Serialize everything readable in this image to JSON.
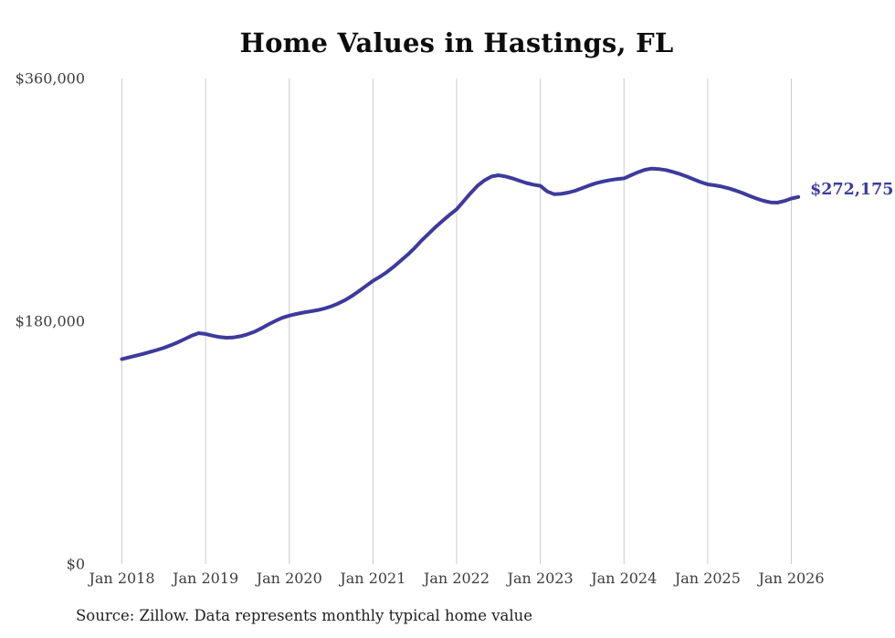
{
  "chart_data": {
    "type": "line",
    "title": "Home Values in Hastings, FL",
    "source_note": "Source: Zillow. Data represents monthly typical home value",
    "end_label": "$272,175",
    "end_value": 272175,
    "x_start_month": "2018-01",
    "x_end_month": "2026-02",
    "x_ticks": [
      "Jan 2018",
      "Jan 2019",
      "Jan 2020",
      "Jan 2021",
      "Jan 2022",
      "Jan 2023",
      "Jan 2024",
      "Jan 2025",
      "Jan 2026"
    ],
    "y_ticks": [
      {
        "label": "$360,000",
        "value": 360000
      },
      {
        "label": "$180,000",
        "value": 180000
      },
      {
        "label": "$0",
        "value": 0
      }
    ],
    "ylim": [
      0,
      360000
    ],
    "grid": "vertical-only",
    "legend": "none",
    "series": [
      {
        "name": "Monthly typical home value",
        "color": "#3e3a9c",
        "values": [
          152000,
          153200,
          154500,
          155800,
          157200,
          158700,
          160300,
          162200,
          164400,
          166800,
          169300,
          171200,
          170600,
          169300,
          168300,
          167800,
          168000,
          168900,
          170300,
          172200,
          174800,
          177600,
          180300,
          182600,
          184200,
          185400,
          186400,
          187300,
          188200,
          189400,
          191000,
          193100,
          195700,
          198800,
          202400,
          206200,
          210000,
          213000,
          216500,
          220500,
          225000,
          229500,
          234500,
          240000,
          245000,
          250000,
          254500,
          259000,
          263000,
          269000,
          275000,
          280500,
          284500,
          287300,
          288300,
          287400,
          286000,
          284200,
          282500,
          281300,
          280400,
          276200,
          274200,
          274500,
          275400,
          276800,
          278700,
          280700,
          282400,
          283700,
          284700,
          285400,
          286000,
          288300,
          290500,
          292300,
          293200,
          292900,
          292100,
          290800,
          289200,
          287300,
          285200,
          283200,
          281500,
          280800,
          279900,
          278600,
          277000,
          275100,
          273000,
          271000,
          269300,
          268200,
          268000,
          269200,
          271000,
          272175
        ]
      }
    ],
    "colors": {
      "line": "#3e3a9c",
      "grid": "#cccccc",
      "axis_text": "#3d3d3d",
      "title_text": "#0d0d0d",
      "source_text": "#1f1f1f",
      "end_label_text": "#3b3b9e",
      "background": "#ffffff"
    }
  }
}
